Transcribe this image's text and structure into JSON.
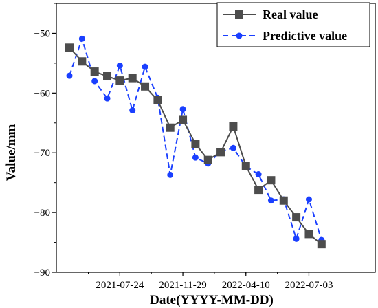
{
  "chart_data": {
    "type": "line",
    "xlabel": "Date(YYYY-MM-DD)",
    "ylabel": "Value/mm",
    "ylim": [
      -90,
      -45
    ],
    "yticks": [
      -50,
      -60,
      -70,
      -80,
      -90
    ],
    "xtick_labels": [
      "2021-07-24",
      "2021-11-29",
      "2022-04-10",
      "2022-07-03"
    ],
    "xtick_index": [
      4,
      9,
      14,
      19
    ],
    "legend_position": "top-right",
    "series": [
      {
        "name": "Real value",
        "color": "#4d4d4d",
        "line": "solid",
        "marker": "square",
        "values": [
          -52.4,
          -54.7,
          -56.4,
          -57.2,
          -57.9,
          -57.5,
          -58.9,
          -61.2,
          -65.8,
          -64.5,
          -68.5,
          -71.2,
          -69.9,
          -65.6,
          -72.2,
          -76.2,
          -74.6,
          -78.0,
          -80.8,
          -83.6,
          -85.3
        ]
      },
      {
        "name": "Predictive value",
        "color": "#1a3fff",
        "line": "dashed",
        "marker": "circle",
        "values": [
          -57.1,
          -50.9,
          -58.0,
          -60.9,
          -55.4,
          -62.9,
          -55.6,
          -60.8,
          -73.7,
          -62.7,
          -70.8,
          -71.8,
          -69.8,
          -69.2,
          -72.3,
          -73.6,
          -78.0,
          -77.8,
          -84.4,
          -77.8,
          -84.6
        ]
      }
    ]
  }
}
